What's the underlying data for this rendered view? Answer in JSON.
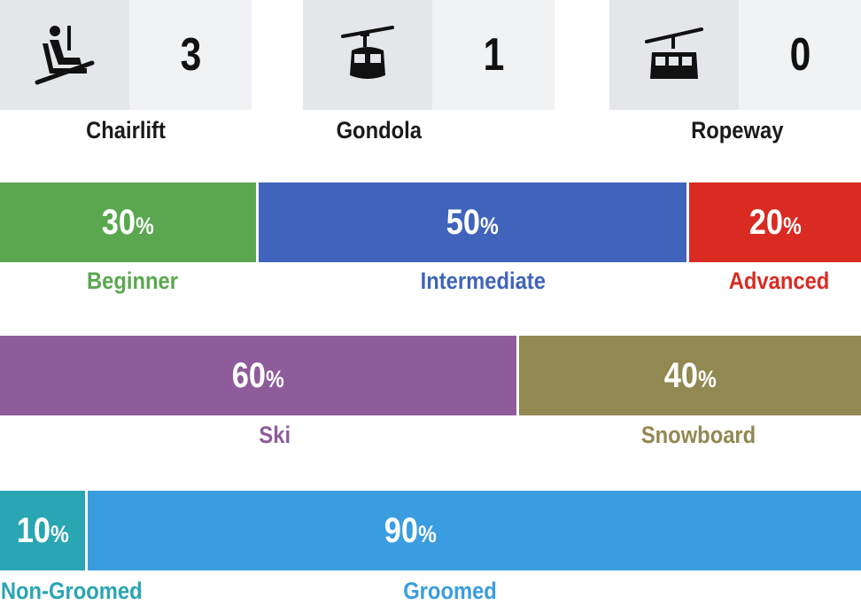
{
  "lifts": [
    {
      "name": "Chairlift",
      "count": "3",
      "icon": "chairlift-icon"
    },
    {
      "name": "Gondola",
      "count": "1",
      "icon": "gondola-icon"
    },
    {
      "name": "Ropeway",
      "count": "0",
      "icon": "ropeway-icon"
    }
  ],
  "difficulty": {
    "beginner": {
      "value": "30",
      "unit": "%",
      "label": "Beginner",
      "color": "#5aa74f"
    },
    "intermediate": {
      "value": "50",
      "unit": "%",
      "label": "Intermediate",
      "color": "#4064bb"
    },
    "advanced": {
      "value": "20",
      "unit": "%",
      "label": "Advanced",
      "color": "#d92b22"
    }
  },
  "discipline": {
    "ski": {
      "value": "60",
      "unit": "%",
      "label": "Ski",
      "color": "#8f5c9b"
    },
    "snowboard": {
      "value": "40",
      "unit": "%",
      "label": "Snowboard",
      "color": "#918852"
    }
  },
  "grooming": {
    "non_groomed": {
      "value": "10",
      "unit": "%",
      "label": "Non-Groomed",
      "color": "#2aa5b3"
    },
    "groomed": {
      "value": "90",
      "unit": "%",
      "label": "Groomed",
      "color": "#3a9ddf"
    }
  }
}
